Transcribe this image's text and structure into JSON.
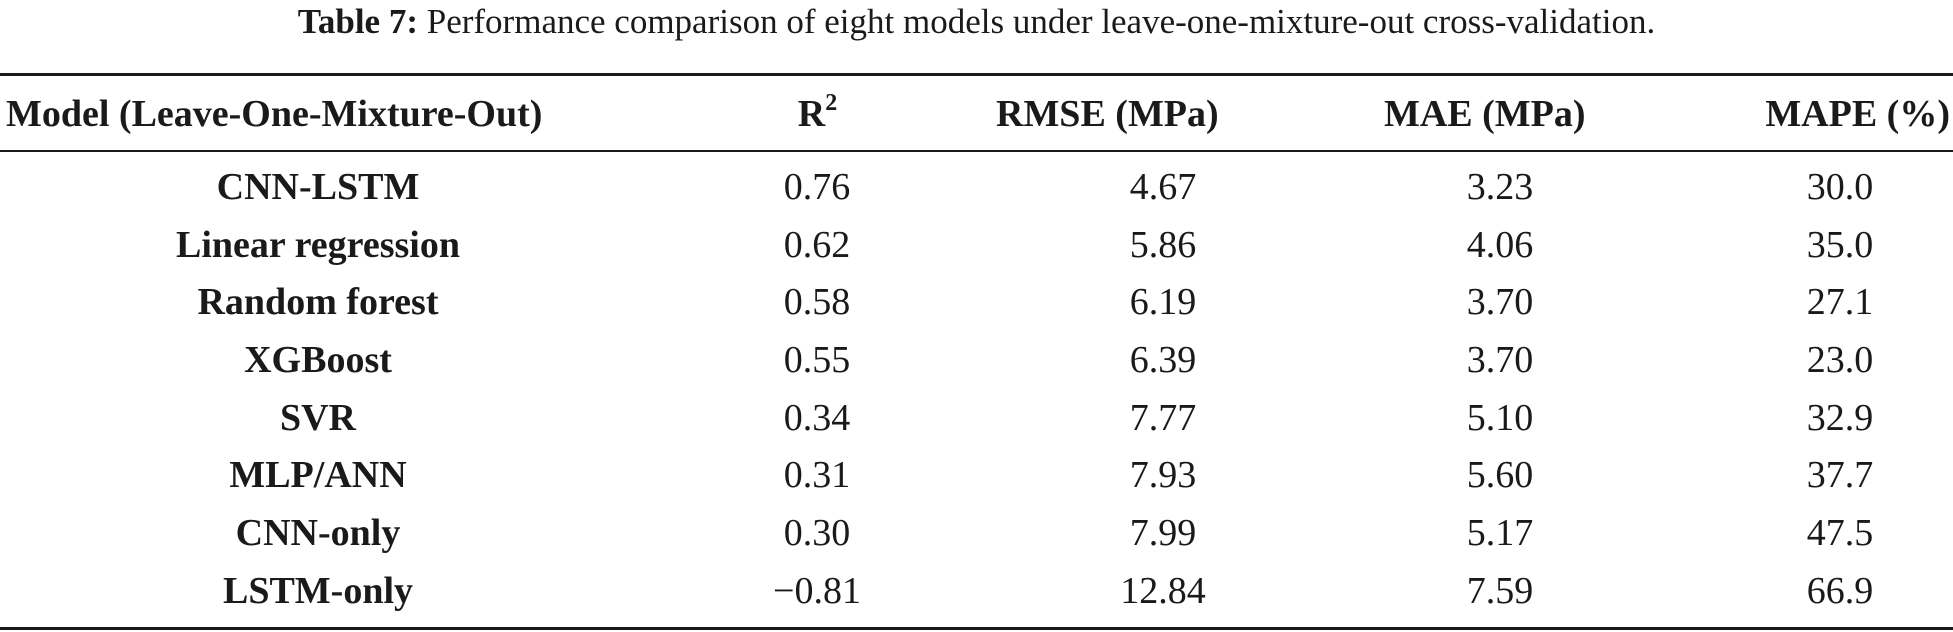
{
  "caption": {
    "label": "Table 7:",
    "text": "Performance comparison of eight models under leave-one-mixture-out cross-validation."
  },
  "table": {
    "headers": {
      "model": "Model (Leave-One-Mixture-Out)",
      "r2_base": "R",
      "r2_sup": "2",
      "rmse": "RMSE (MPa)",
      "mae": "MAE (MPa)",
      "mape": "MAPE (%)"
    },
    "rows": [
      {
        "model": "CNN-LSTM",
        "r2": "0.76",
        "rmse": "4.67",
        "mae": "3.23",
        "mape": "30.0"
      },
      {
        "model": "Linear regression",
        "r2": "0.62",
        "rmse": "5.86",
        "mae": "4.06",
        "mape": "35.0"
      },
      {
        "model": "Random forest",
        "r2": "0.58",
        "rmse": "6.19",
        "mae": "3.70",
        "mape": "27.1"
      },
      {
        "model": "XGBoost",
        "r2": "0.55",
        "rmse": "6.39",
        "mae": "3.70",
        "mape": "23.0"
      },
      {
        "model": "SVR",
        "r2": "0.34",
        "rmse": "7.77",
        "mae": "5.10",
        "mape": "32.9"
      },
      {
        "model": "MLP/ANN",
        "r2": "0.31",
        "rmse": "7.93",
        "mae": "5.60",
        "mape": "37.7"
      },
      {
        "model": "CNN-only",
        "r2": "0.30",
        "rmse": "7.99",
        "mae": "5.17",
        "mape": "47.5"
      },
      {
        "model": "LSTM-only",
        "r2": "−0.81",
        "rmse": "12.84",
        "mae": "7.59",
        "mape": "66.9"
      }
    ]
  }
}
